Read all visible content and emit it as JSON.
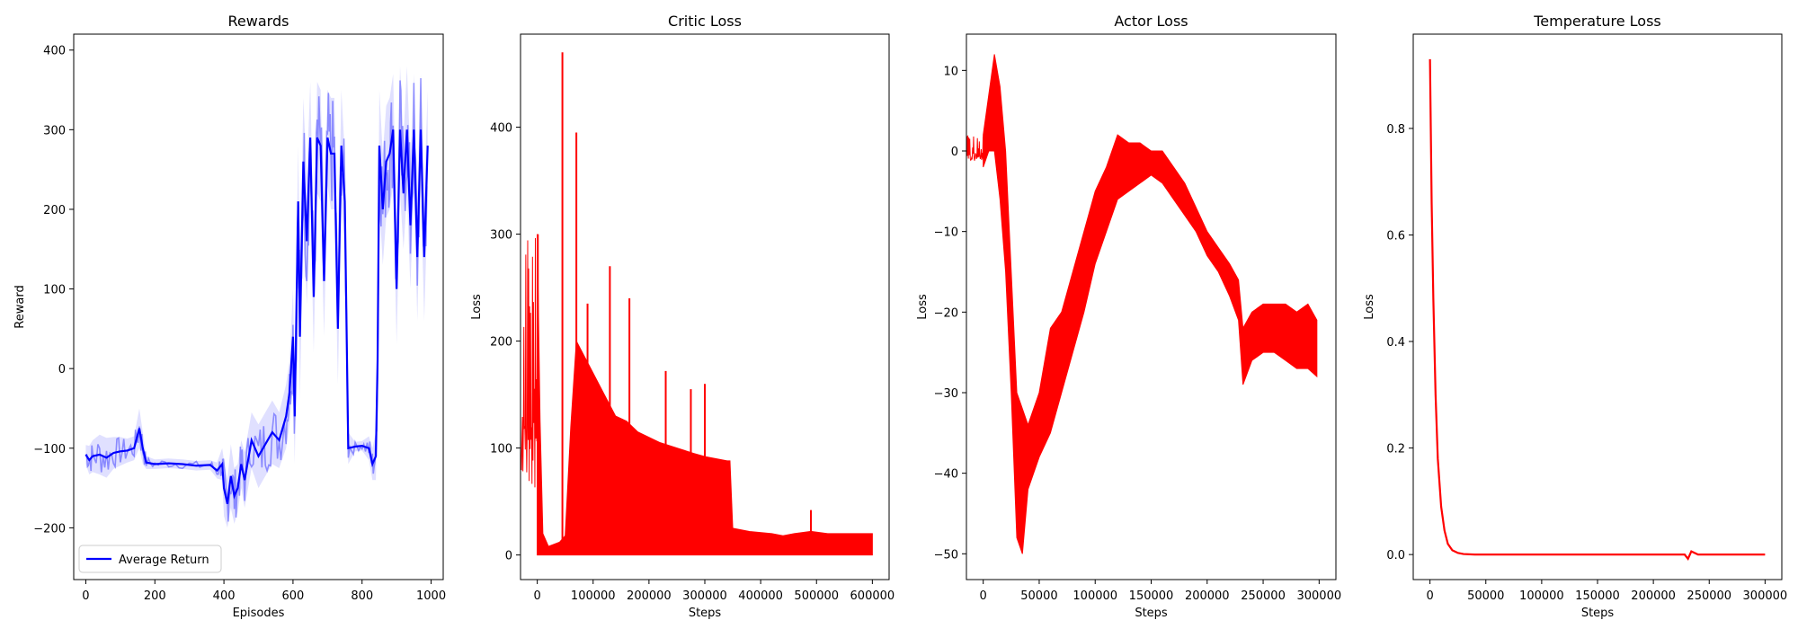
{
  "chart_data": [
    {
      "type": "line",
      "title": "Rewards",
      "xlabel": "Episodes",
      "ylabel": "Reward",
      "xlim": [
        -35,
        1035
      ],
      "ylim": [
        -265,
        420
      ],
      "xticks": [
        0,
        200,
        400,
        600,
        800,
        1000
      ],
      "yticks": [
        -200,
        -100,
        0,
        100,
        200,
        300,
        400
      ],
      "legend": {
        "entries": [
          "Average Return"
        ],
        "placement": "lower-left"
      },
      "colors": {
        "line": "#0000ff",
        "band": "#0000ff"
      },
      "series": [
        {
          "name": "Average Return",
          "x": [
            0,
            10,
            20,
            40,
            60,
            80,
            100,
            120,
            140,
            155,
            165,
            175,
            200,
            240,
            280,
            320,
            360,
            380,
            395,
            400,
            410,
            420,
            430,
            440,
            450,
            460,
            480,
            500,
            520,
            540,
            560,
            580,
            590,
            600,
            605,
            615,
            620,
            630,
            640,
            650,
            660,
            670,
            680,
            690,
            700,
            710,
            720,
            730,
            740,
            750,
            760,
            780,
            800,
            820,
            830,
            840,
            845,
            850,
            860,
            870,
            880,
            890,
            900,
            910,
            920,
            930,
            940,
            950,
            960,
            970,
            980,
            990
          ],
          "y": [
            -108,
            -115,
            -110,
            -108,
            -112,
            -106,
            -104,
            -103,
            -100,
            -75,
            -100,
            -118,
            -120,
            -119,
            -120,
            -122,
            -121,
            -128,
            -120,
            -150,
            -170,
            -135,
            -160,
            -150,
            -120,
            -140,
            -90,
            -110,
            -95,
            -80,
            -90,
            -60,
            -30,
            40,
            -60,
            210,
            40,
            260,
            160,
            290,
            90,
            290,
            280,
            110,
            290,
            270,
            270,
            50,
            280,
            210,
            -100,
            -98,
            -97,
            -100,
            -120,
            -110,
            10,
            280,
            200,
            260,
            270,
            300,
            100,
            300,
            220,
            300,
            180,
            300,
            140,
            300,
            140,
            280
          ]
        }
      ],
      "band_spread": [
        12,
        18,
        20,
        25,
        25,
        20,
        18,
        15,
        15,
        25,
        20,
        8,
        6,
        6,
        6,
        6,
        6,
        10,
        20,
        35,
        30,
        40,
        35,
        30,
        30,
        35,
        35,
        40,
        40,
        40,
        35,
        40,
        40,
        60,
        60,
        70,
        80,
        80,
        80,
        70,
        70,
        70,
        70,
        70,
        60,
        70,
        70,
        70,
        70,
        60,
        20,
        6,
        6,
        15,
        20,
        30,
        40,
        70,
        70,
        70,
        70,
        70,
        70,
        80,
        70,
        80,
        80,
        70,
        80,
        70,
        80,
        70
      ]
    },
    {
      "type": "line",
      "title": "Critic Loss",
      "xlabel": "Steps",
      "ylabel": "Loss",
      "xlim": [
        -30000,
        630000
      ],
      "ylim": [
        -23,
        487
      ],
      "xticks": [
        0,
        100000,
        200000,
        300000,
        400000,
        500000,
        600000
      ],
      "yticks": [
        0,
        100,
        200,
        300,
        400
      ],
      "colors": {
        "line": "#ff0000"
      },
      "series": [
        {
          "x": [
            0,
            5000,
            10000,
            20000,
            30000,
            40000,
            50000,
            60000,
            70000,
            80000,
            100000,
            120000,
            140000,
            160000,
            180000,
            200000,
            220000,
            250000,
            280000,
            300000,
            320000,
            340000,
            345000,
            350000,
            380000,
            420000,
            440000,
            460000,
            490000,
            520000,
            560000,
            600000
          ],
          "y_upper": [
            300,
            125,
            20,
            8,
            10,
            12,
            18,
            120,
            200,
            190,
            170,
            150,
            130,
            125,
            115,
            110,
            105,
            100,
            95,
            92,
            90,
            88,
            88,
            25,
            22,
            20,
            18,
            20,
            22,
            20,
            20,
            20
          ],
          "y_lower": [
            0,
            0,
            0,
            0,
            0,
            0,
            0,
            0,
            0,
            0,
            0,
            0,
            0,
            0,
            0,
            0,
            0,
            0,
            0,
            0,
            0,
            0,
            0,
            0,
            0,
            0,
            0,
            0,
            0,
            0,
            0,
            0
          ]
        }
      ],
      "spikes": [
        {
          "x": 1000,
          "y": 300
        },
        {
          "x": 45000,
          "y": 470
        },
        {
          "x": 70000,
          "y": 395
        },
        {
          "x": 90000,
          "y": 235
        },
        {
          "x": 130000,
          "y": 270
        },
        {
          "x": 165000,
          "y": 240
        },
        {
          "x": 230000,
          "y": 172
        },
        {
          "x": 275000,
          "y": 155
        },
        {
          "x": 300000,
          "y": 160
        },
        {
          "x": 490000,
          "y": 42
        }
      ]
    },
    {
      "type": "line",
      "title": "Actor Loss",
      "xlabel": "Steps",
      "ylabel": "Loss",
      "xlim": [
        -15000,
        315000
      ],
      "ylim": [
        -53.2,
        14.5
      ],
      "xticks": [
        0,
        50000,
        100000,
        150000,
        200000,
        250000,
        300000
      ],
      "yticks": [
        -50,
        -40,
        -30,
        -20,
        -10,
        0,
        10
      ],
      "colors": {
        "line": "#ff0000"
      },
      "series": [
        {
          "x": [
            0,
            5000,
            10000,
            15000,
            20000,
            25000,
            30000,
            35000,
            40000,
            50000,
            60000,
            70000,
            80000,
            90000,
            100000,
            110000,
            120000,
            130000,
            140000,
            150000,
            160000,
            170000,
            180000,
            190000,
            200000,
            210000,
            220000,
            228000,
            232000,
            240000,
            250000,
            260000,
            270000,
            280000,
            290000,
            298000
          ],
          "y_upper": [
            2,
            7,
            12,
            8,
            0,
            -15,
            -30,
            -32,
            -34,
            -30,
            -22,
            -20,
            -15,
            -10,
            -5,
            -2,
            2,
            1,
            1,
            0,
            0,
            -2,
            -4,
            -7,
            -10,
            -12,
            -14,
            -16,
            -22,
            -20,
            -19,
            -19,
            -19,
            -20,
            -19,
            -21
          ],
          "y_lower": [
            -2,
            0,
            0,
            -6,
            -15,
            -30,
            -48,
            -50,
            -42,
            -38,
            -35,
            -30,
            -25,
            -20,
            -14,
            -10,
            -6,
            -5,
            -4,
            -3,
            -4,
            -6,
            -8,
            -10,
            -13,
            -15,
            -18,
            -21,
            -29,
            -26,
            -25,
            -25,
            -26,
            -27,
            -27,
            -28
          ]
        }
      ]
    },
    {
      "type": "line",
      "title": "Temperature Loss",
      "xlabel": "Steps",
      "ylabel": "Loss",
      "xlim": [
        -15000,
        315000
      ],
      "ylim": [
        -0.047,
        0.977
      ],
      "xticks": [
        0,
        50000,
        100000,
        150000,
        200000,
        250000,
        300000
      ],
      "yticks": [
        0.0,
        0.2,
        0.4,
        0.6,
        0.8
      ],
      "colors": {
        "line": "#ff0000"
      },
      "series": [
        {
          "x": [
            0,
            500,
            1500,
            3000,
            5000,
            7000,
            10000,
            13000,
            16000,
            20000,
            25000,
            30000,
            40000,
            60000,
            100000,
            150000,
            200000,
            228000,
            231000,
            234000,
            240000,
            300000
          ],
          "y": [
            0.93,
            0.84,
            0.66,
            0.48,
            0.3,
            0.18,
            0.09,
            0.045,
            0.02,
            0.008,
            0.003,
            0.001,
            0.0,
            0.0,
            0.0,
            0.0,
            0.0,
            0.0,
            -0.008,
            0.006,
            0.0,
            0.0
          ]
        }
      ]
    }
  ]
}
